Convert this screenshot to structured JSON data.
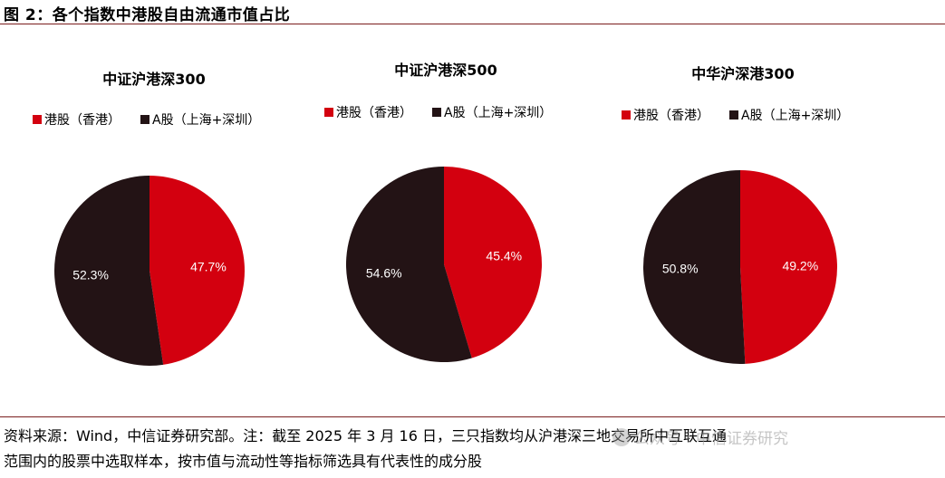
{
  "figure_title": "图 2：各个指数中港股自由流通市值占比",
  "colors": {
    "hk": "#d3000f",
    "a": "#231315",
    "rule": "#7a1d1d"
  },
  "chart_data": [
    {
      "type": "pie",
      "title": "中证沪港深300",
      "legend": [
        "港股（香港）",
        "A股（上海+深圳）"
      ],
      "slices": [
        {
          "name": "港股（香港）",
          "value": 47.7,
          "label": "47.7%"
        },
        {
          "name": "A股（上海+深圳）",
          "value": 52.3,
          "label": "52.3%"
        }
      ]
    },
    {
      "type": "pie",
      "title": "中证沪港深500",
      "legend": [
        "港股（香港）",
        "A股（上海+深圳）"
      ],
      "slices": [
        {
          "name": "港股（香港）",
          "value": 45.4,
          "label": "45.4%"
        },
        {
          "name": "A股（上海+深圳）",
          "value": 54.6,
          "label": "54.6%"
        }
      ]
    },
    {
      "type": "pie",
      "title": "中华沪深港300",
      "legend": [
        "港股（香港）",
        "A股（上海+深圳）"
      ],
      "slices": [
        {
          "name": "港股（香港）",
          "value": 49.2,
          "label": "49.2%"
        },
        {
          "name": "A股（上海+深圳）",
          "value": 50.8,
          "label": "50.8%"
        }
      ]
    }
  ],
  "source_line1": "资料来源：Wind，中信证券研究部。注：截至 2025 年 3 月 16 日，三只指数均从沪港深三地交易所中互联互通",
  "source_line2": "范围内的股票中选取样本，按市值与流动性等指标筛选具有代表性的成分股",
  "watermark": "公众号・中信证券研究"
}
